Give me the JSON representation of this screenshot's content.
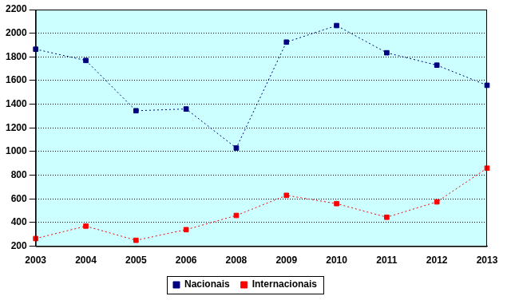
{
  "chart_data": {
    "type": "line",
    "categories": [
      "2003",
      "2004",
      "2005",
      "2006",
      "2008",
      "2009",
      "2010",
      "2011",
      "2012",
      "2013"
    ],
    "series": [
      {
        "name": "Nacionais",
        "color": "#000080",
        "marker": "square",
        "line_style": "dotted",
        "values": [
          1865,
          1770,
          1345,
          1360,
          1030,
          1925,
          2065,
          1835,
          1730,
          1560
        ]
      },
      {
        "name": "Internacionais",
        "color": "#ff0000",
        "marker": "square",
        "line_style": "dotted",
        "values": [
          265,
          370,
          250,
          340,
          460,
          630,
          560,
          445,
          575,
          860
        ]
      }
    ],
    "ylim": [
      200,
      2200
    ],
    "yticks": [
      200,
      400,
      600,
      800,
      1000,
      1200,
      1400,
      1600,
      1800,
      2000,
      2200
    ],
    "grid": true,
    "legend": "bottom"
  }
}
